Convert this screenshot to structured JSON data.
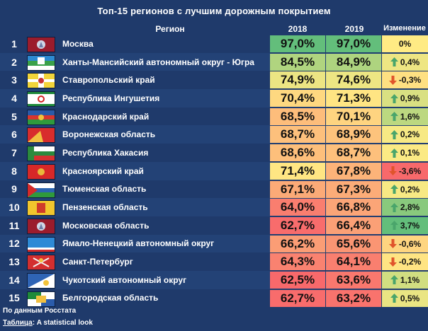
{
  "title": "Топ-15 регионов с лучшим дорожным покрытием",
  "headers": {
    "region": "Регион",
    "y2018": "2018",
    "y2019": "2019",
    "change": "Изменение"
  },
  "footer": {
    "source": "По данным Росстата",
    "table_label": "Таблица",
    "table_author": ": A statistical look"
  },
  "colors": {
    "background": "#1f3a6b",
    "high": "#63be7b",
    "mid": "#ffeb84",
    "low": "#f8696b",
    "up_arrow": "#4aa56b",
    "down_arrow": "#e0542b"
  },
  "chart_data": {
    "type": "table",
    "title": "Топ-15 регионов с лучшим дорожным покрытием",
    "columns": [
      "Регион",
      "2018",
      "2019",
      "Изменение"
    ],
    "rows": [
      {
        "rank": "1",
        "region": "Москва",
        "v2018": "97,0%",
        "v2019": "97,0%",
        "change": "0%",
        "n2018": 97.0,
        "n2019": 97.0,
        "nchange": 0.0,
        "dir": "none",
        "flag": "moscow-flag"
      },
      {
        "rank": "2",
        "region": "Ханты-Мансийский автономный округ - Югра",
        "v2018": "84,5%",
        "v2019": "84,9%",
        "change": "0,4%",
        "n2018": 84.5,
        "n2019": 84.9,
        "nchange": 0.4,
        "dir": "up",
        "flag": "khmao-flag"
      },
      {
        "rank": "3",
        "region": "Ставропольский край",
        "v2018": "74,9%",
        "v2019": "74,6%",
        "change": "-0,3%",
        "n2018": 74.9,
        "n2019": 74.6,
        "nchange": -0.3,
        "dir": "down",
        "flag": "stavropol-flag"
      },
      {
        "rank": "4",
        "region": "Республика Ингушетия",
        "v2018": "70,4%",
        "v2019": "71,3%",
        "change": "0,9%",
        "n2018": 70.4,
        "n2019": 71.3,
        "nchange": 0.9,
        "dir": "up",
        "flag": "ingushetia-flag"
      },
      {
        "rank": "5",
        "region": "Краснодарский край",
        "v2018": "68,5%",
        "v2019": "70,1%",
        "change": "1,6%",
        "n2018": 68.5,
        "n2019": 70.1,
        "nchange": 1.6,
        "dir": "up",
        "flag": "krasnodar-flag"
      },
      {
        "rank": "6",
        "region": "Воронежская область",
        "v2018": "68,7%",
        "v2019": "68,9%",
        "change": "0,2%",
        "n2018": 68.7,
        "n2019": 68.9,
        "nchange": 0.2,
        "dir": "up",
        "flag": "voronezh-flag"
      },
      {
        "rank": "7",
        "region": "Республика Хакасия",
        "v2018": "68,6%",
        "v2019": "68,7%",
        "change": "0,1%",
        "n2018": 68.6,
        "n2019": 68.7,
        "nchange": 0.1,
        "dir": "up",
        "flag": "khakassia-flag"
      },
      {
        "rank": "8",
        "region": "Красноярский край",
        "v2018": "71,4%",
        "v2019": "67,8%",
        "change": "-3,6%",
        "n2018": 71.4,
        "n2019": 67.8,
        "nchange": -3.6,
        "dir": "down",
        "flag": "krasnoyarsk-flag"
      },
      {
        "rank": "9",
        "region": "Тюменская область",
        "v2018": "67,1%",
        "v2019": "67,3%",
        "change": "0,2%",
        "n2018": 67.1,
        "n2019": 67.3,
        "nchange": 0.2,
        "dir": "up",
        "flag": "tyumen-flag"
      },
      {
        "rank": "10",
        "region": "Пензенская область",
        "v2018": "64,0%",
        "v2019": "66,8%",
        "change": "2,8%",
        "n2018": 64.0,
        "n2019": 66.8,
        "nchange": 2.8,
        "dir": "up",
        "flag": "penza-flag"
      },
      {
        "rank": "11",
        "region": "Московская область",
        "v2018": "62,7%",
        "v2019": "66,4%",
        "change": "3,7%",
        "n2018": 62.7,
        "n2019": 66.4,
        "nchange": 3.7,
        "dir": "up",
        "flag": "moscow-oblast-flag"
      },
      {
        "rank": "12",
        "region": "Ямало-Ненецкий автономный округ",
        "v2018": "66,2%",
        "v2019": "65,6%",
        "change": "-0,6%",
        "n2018": 66.2,
        "n2019": 65.6,
        "nchange": -0.6,
        "dir": "down",
        "flag": "yamal-flag"
      },
      {
        "rank": "13",
        "region": "Санкт-Петербург",
        "v2018": "64,3%",
        "v2019": "64,1%",
        "change": "-0,2%",
        "n2018": 64.3,
        "n2019": 64.1,
        "nchange": -0.2,
        "dir": "down",
        "flag": "spb-flag"
      },
      {
        "rank": "14",
        "region": "Чукотский автономный округ",
        "v2018": "62,5%",
        "v2019": "63,6%",
        "change": "1,1%",
        "n2018": 62.5,
        "n2019": 63.6,
        "nchange": 1.1,
        "dir": "up",
        "flag": "chukotka-flag"
      },
      {
        "rank": "15",
        "region": "Белгородская область",
        "v2018": "62,7%",
        "v2019": "63,2%",
        "change": "0,5%",
        "n2018": 62.7,
        "n2019": 63.2,
        "nchange": 0.5,
        "dir": "up",
        "flag": "belgorod-flag"
      }
    ]
  }
}
